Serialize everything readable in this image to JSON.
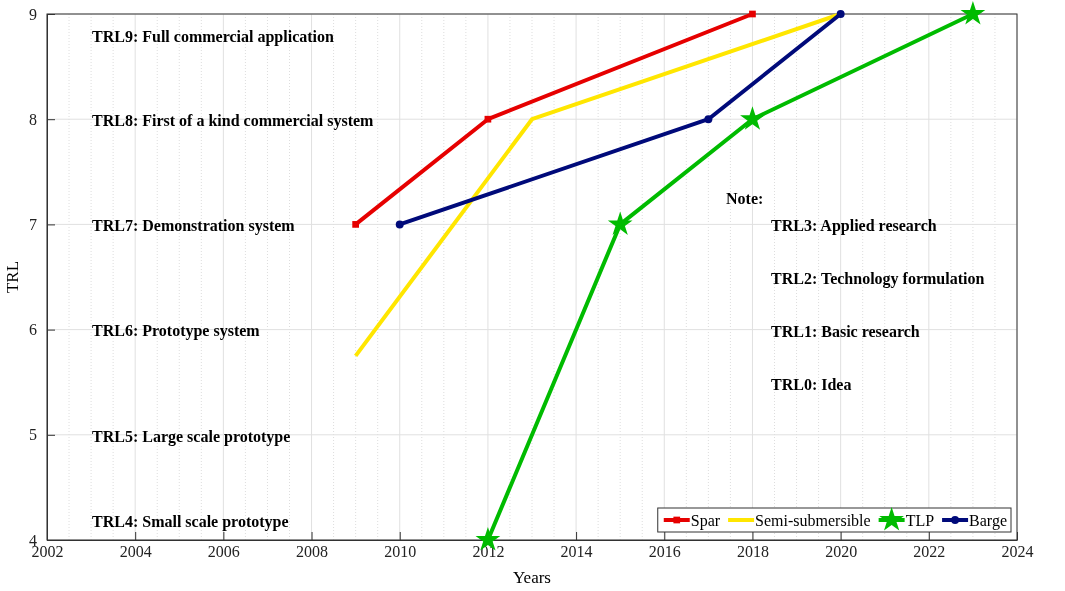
{
  "chart_data": {
    "type": "line",
    "xlabel": "Years",
    "ylabel": "TRL",
    "xlim": [
      2002,
      2024
    ],
    "xticks": [
      2002,
      2004,
      2006,
      2008,
      2010,
      2012,
      2014,
      2016,
      2018,
      2020,
      2022,
      2024
    ],
    "ylim": [
      4,
      9
    ],
    "yticks": [
      4,
      5,
      6,
      7,
      8,
      9
    ],
    "grid": true,
    "legend": "bottom right",
    "line_style": "solid",
    "series": [
      {
        "name": "Spar",
        "color": "#e60000",
        "marker": "square",
        "x": [
          2009,
          2012,
          2018
        ],
        "values": [
          7,
          8,
          9
        ]
      },
      {
        "name": "Semi-submersible",
        "color": "#ffe600",
        "marker": "none",
        "x": [
          2009,
          2013,
          2020
        ],
        "values": [
          5.75,
          8,
          9
        ]
      },
      {
        "name": "TLP",
        "color": "#00bb00",
        "marker": "star",
        "x": [
          2012,
          2015,
          2018,
          2023
        ],
        "values": [
          4,
          7,
          8,
          9
        ]
      },
      {
        "name": "Barge",
        "color": "#000a7a",
        "marker": "circle",
        "x": [
          2010,
          2017,
          2020
        ],
        "values": [
          7,
          8,
          9
        ]
      }
    ],
    "annotations": [
      "TRL9: Full commercial application",
      "TRL8: First of a kind commercial system",
      "TRL7: Demonstration system",
      "TRL6: Prototype system",
      "TRL5: Large scale prototype",
      "TRL4: Small scale prototype",
      "Note:",
      "TRL3: Applied research",
      "TRL2: Technology formulation",
      "TRL1: Basic research",
      "TRL0: Idea"
    ]
  }
}
